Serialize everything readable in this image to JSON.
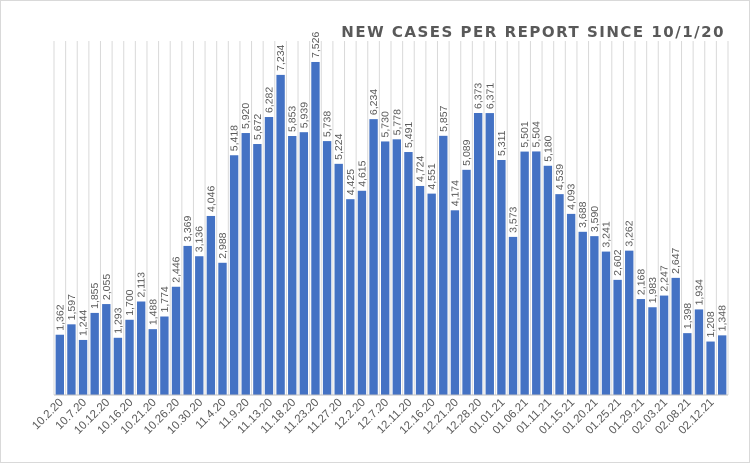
{
  "chart_data": {
    "type": "bar",
    "title": "NEW CASES PER REPORT SINCE 10/1/20",
    "xlabel": "",
    "ylabel": "",
    "ylim": [
      0,
      8000
    ],
    "grid": "vertical",
    "legend": "none",
    "bar_color": "#4472c4",
    "categories": [
      "10.2.20",
      "",
      "10.7.20",
      "",
      "10.12.20",
      "",
      "10.16.20",
      "",
      "10.21.20",
      "",
      "10.26.20",
      "",
      "10.30.20",
      "",
      "11.4.20",
      "",
      "11.9.20",
      "",
      "11.13.20",
      "",
      "11.18.20",
      "",
      "11.23.20",
      "",
      "11.27.20",
      "",
      "12.2.20",
      "",
      "12.7.20",
      "",
      "12.11.20",
      "",
      "12.16.20",
      "",
      "12.21.20",
      "",
      "12.28.20",
      "",
      "01.01.21",
      "",
      "01.06.21",
      "",
      "01.11.21",
      "",
      "01.15.21",
      "",
      "01.20.21",
      "",
      "01.25.21",
      "",
      "01.29.21",
      "",
      "02.03.21",
      "",
      "02.08.21",
      "",
      "02.12.21",
      ""
    ],
    "values": [
      1362,
      1597,
      1244,
      1855,
      2055,
      1293,
      1700,
      2113,
      1488,
      1774,
      2446,
      3369,
      3136,
      4046,
      2988,
      5418,
      5920,
      5672,
      6282,
      7234,
      5853,
      5939,
      7526,
      5738,
      5224,
      4425,
      4615,
      6234,
      5730,
      5778,
      5491,
      4724,
      4551,
      5857,
      4174,
      5089,
      6373,
      6371,
      5311,
      3573,
      5501,
      5504,
      5180,
      4539,
      4093,
      3688,
      3590,
      3241,
      2602,
      3262,
      2168,
      1983,
      2247,
      2647,
      1398,
      1934,
      1208,
      1348
    ],
    "value_labels": [
      "1,362",
      "1,597",
      "1,244",
      "1,855",
      "2,055",
      "1,293",
      "1,700",
      "2,113",
      "1,488",
      "1,774",
      "2,446",
      "3,369",
      "3,136",
      "4,046",
      "2,988",
      "5,418",
      "5,920",
      "5,672",
      "6,282",
      "7,234",
      "5,853",
      "5,939",
      "7,526",
      "5,738",
      "5,224",
      "4,425",
      "4,615",
      "6,234",
      "5,730",
      "5,778",
      "5,491",
      "4,724",
      "4,551",
      "5,857",
      "4,174",
      "5,089",
      "6,373",
      "6,371",
      "5,311",
      "3,573",
      "5,501",
      "5,504",
      "5,180",
      "4,539",
      "4,093",
      "3,688",
      "3,590",
      "3,241",
      "2,602",
      "3,262",
      "2,168",
      "1,983",
      "2,247",
      "2,647",
      "1,398",
      "1,934",
      "1,208",
      "1,348"
    ]
  }
}
